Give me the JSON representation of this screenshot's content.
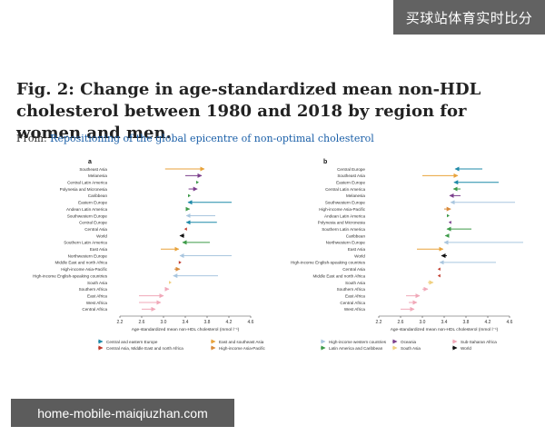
{
  "watermark_top": "买球站体育实时比分",
  "watermark_bottom": "home-mobile-maiqiuzhan.com",
  "title": "Fig. 2: Change in age-standardized mean non-HDL cholesterol between 1980 and 2018 by region for women and men.",
  "from_label": "From:",
  "from_link": "Repositioning of the global epicentre of non-optimal cholesterol",
  "colors": {
    "central_eastern_europe": "#1f8aa8",
    "east_southeast_asia": "#e8a23a",
    "high_income_western": "#a9c6df",
    "oceania": "#7b3f8c",
    "sub_saharan_africa": "#f0a8b8",
    "central_asia_mena": "#c0392b",
    "high_income_asia_pacific": "#d98a3a",
    "latin_america_caribbean": "#3c9a48",
    "south_asia": "#f0d080",
    "world": "#111111"
  },
  "legend": [
    {
      "label": "Central and eastern Europe",
      "color_key": "central_eastern_europe"
    },
    {
      "label": "East and southeast Asia",
      "color_key": "east_southeast_asia"
    },
    {
      "label": "High-income western countries",
      "color_key": "high_income_western"
    },
    {
      "label": "Oceania",
      "color_key": "oceania"
    },
    {
      "label": "Sub-Saharan Africa",
      "color_key": "sub_saharan_africa"
    },
    {
      "label": "Central Asia, Middle East and north Africa",
      "color_key": "central_asia_mena"
    },
    {
      "label": "High-income Asia-Pacific",
      "color_key": "high_income_asia_pacific"
    },
    {
      "label": "Latin America and Caribbean",
      "color_key": "latin_america_caribbean"
    },
    {
      "label": "South Asia",
      "color_key": "south_asia"
    },
    {
      "label": "World",
      "color_key": "world"
    }
  ],
  "chart_data": [
    {
      "type": "arrow",
      "panel_label": "a",
      "xlabel": "Age-standardized mean non-HDL cholesterol (mmol l⁻¹)",
      "xlim": [
        2.2,
        4.6
      ],
      "xticks": [
        "2.2",
        "2.6",
        "3.0",
        "3.4",
        "3.8",
        "4.2",
        "4.6"
      ],
      "categories": [
        "Southeast Asia",
        "Melanesia",
        "Central Latin America",
        "Polynesia and Micronesia",
        "Caribbean",
        "Eastern Europe",
        "Andean Latin America",
        "Southwestern Europe",
        "Central Europe",
        "Central Asia",
        "World",
        "Southern Latin America",
        "East Asia",
        "Northwestern Europe",
        "Middle East and north Africa",
        "High-income Asia-Pacific",
        "High-income English-speaking countries",
        "South Asia",
        "Southern Africa",
        "East Africa",
        "West Africa",
        "Central Africa"
      ],
      "start_1980": [
        3.03,
        3.4,
        3.6,
        3.46,
        3.48,
        4.25,
        3.42,
        3.95,
        3.98,
        3.4,
        3.38,
        3.85,
        2.95,
        4.25,
        3.3,
        3.2,
        4.0,
        3.1,
        3.05,
        2.55,
        2.55,
        2.6
      ],
      "end_2018": [
        3.75,
        3.7,
        3.65,
        3.62,
        3.5,
        3.45,
        3.48,
        3.42,
        3.42,
        3.38,
        3.3,
        3.35,
        3.28,
        3.3,
        3.33,
        3.3,
        3.18,
        3.15,
        3.1,
        3.0,
        2.95,
        2.85
      ],
      "group_keys": [
        "east_southeast_asia",
        "oceania",
        "latin_america_caribbean",
        "oceania",
        "latin_america_caribbean",
        "central_eastern_europe",
        "latin_america_caribbean",
        "high_income_western",
        "central_eastern_europe",
        "central_asia_mena",
        "world",
        "latin_america_caribbean",
        "east_southeast_asia",
        "high_income_western",
        "central_asia_mena",
        "high_income_asia_pacific",
        "high_income_western",
        "south_asia",
        "sub_saharan_africa",
        "sub_saharan_africa",
        "sub_saharan_africa",
        "sub_saharan_africa"
      ]
    },
    {
      "type": "arrow",
      "panel_label": "b",
      "xlabel": "Age-standardized mean non-HDL cholesterol (mmol l⁻¹)",
      "xlim": [
        2.2,
        4.8
      ],
      "xticks": [
        "2.2",
        "2.6",
        "3.0",
        "3.4",
        "3.8",
        "4.2",
        "4.6"
      ],
      "categories": [
        "Central Europe",
        "Southeast Asia",
        "Eastern Europe",
        "Central Latin America",
        "Melanesia",
        "Southwestern Europe",
        "High-income Asia-Pacific",
        "Andean Latin America",
        "Polynesia and Micronesia",
        "Southern Latin America",
        "Caribbean",
        "Northwestern Europe",
        "East Asia",
        "World",
        "High-income English-speaking countries",
        "Central Asia",
        "Middle East and north Africa",
        "South Asia",
        "Southern Africa",
        "East Africa",
        "Central Africa",
        "West Africa"
      ],
      "start_1980": [
        4.1,
        3.0,
        4.4,
        3.7,
        3.7,
        4.7,
        3.4,
        3.48,
        3.5,
        3.9,
        3.48,
        4.85,
        2.9,
        3.45,
        4.35,
        3.3,
        3.3,
        3.1,
        3.0,
        2.7,
        2.75,
        2.6
      ],
      "end_2018": [
        3.6,
        3.65,
        3.58,
        3.57,
        3.5,
        3.52,
        3.52,
        3.5,
        3.48,
        3.45,
        3.42,
        3.4,
        3.38,
        3.35,
        3.32,
        3.28,
        3.28,
        3.2,
        3.1,
        2.95,
        2.9,
        2.85
      ],
      "group_keys": [
        "central_eastern_europe",
        "east_southeast_asia",
        "central_eastern_europe",
        "latin_america_caribbean",
        "oceania",
        "high_income_western",
        "high_income_asia_pacific",
        "latin_america_caribbean",
        "oceania",
        "latin_america_caribbean",
        "latin_america_caribbean",
        "high_income_western",
        "east_southeast_asia",
        "world",
        "high_income_western",
        "central_asia_mena",
        "central_asia_mena",
        "south_asia",
        "sub_saharan_africa",
        "sub_saharan_africa",
        "sub_saharan_africa",
        "sub_saharan_africa"
      ]
    }
  ]
}
